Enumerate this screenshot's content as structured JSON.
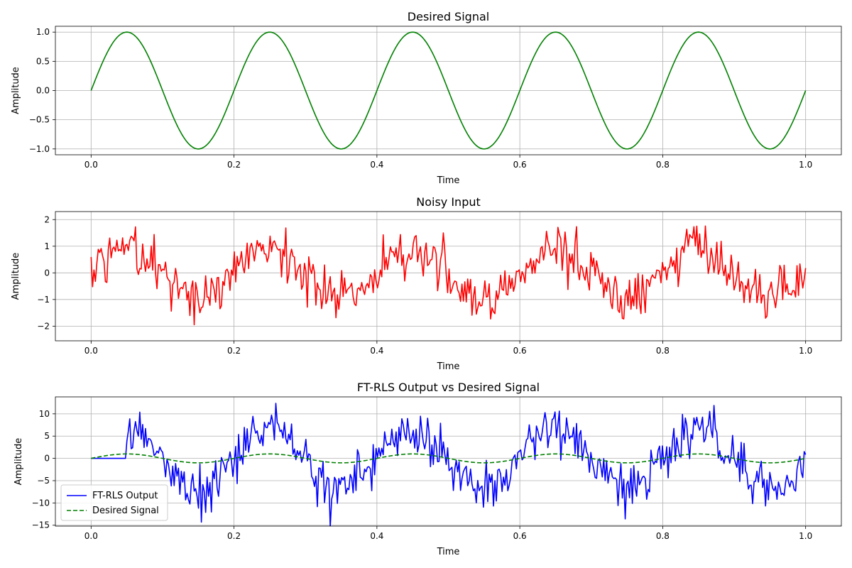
{
  "chart_data": [
    {
      "type": "line",
      "title": "Desired Signal",
      "xlabel": "Time",
      "ylabel": "Amplitude",
      "xlim": [
        -0.05,
        1.05
      ],
      "ylim": [
        -1.1,
        1.1
      ],
      "xticks": [
        0.0,
        0.2,
        0.4,
        0.6,
        0.8,
        1.0
      ],
      "xtick_labels": [
        "0.0",
        "0.2",
        "0.4",
        "0.6",
        "0.8",
        "1.0"
      ],
      "yticks": [
        1.0,
        0.5,
        0.0,
        -0.5,
        -1.0
      ],
      "ytick_labels": [
        "1.0",
        "0.5",
        "0.0",
        "−0.5",
        "−1.0"
      ],
      "grid": true,
      "legend": null,
      "series": [
        {
          "color": "#008000",
          "style": "solid",
          "function": "sin(2*pi*5*t)",
          "x_range": [
            0,
            1
          ],
          "n_points": 500
        }
      ]
    },
    {
      "type": "line",
      "title": "Noisy Input",
      "xlabel": "Time",
      "ylabel": "Amplitude",
      "xlim": [
        -0.05,
        1.05
      ],
      "ylim": [
        -2.55,
        2.3
      ],
      "xticks": [
        0.0,
        0.2,
        0.4,
        0.6,
        0.8,
        1.0
      ],
      "xtick_labels": [
        "0.0",
        "0.2",
        "0.4",
        "0.6",
        "0.8",
        "1.0"
      ],
      "yticks": [
        2,
        1,
        0,
        -1,
        -2
      ],
      "ytick_labels": [
        "2",
        "1",
        "0",
        "−1",
        "−2"
      ],
      "grid": true,
      "legend": null,
      "series": [
        {
          "color": "#ff0000",
          "style": "solid",
          "function": "sin(2*pi*5*t) + noise",
          "noise_std": 0.45,
          "x_range": [
            0,
            1
          ],
          "n_points": 500
        }
      ]
    },
    {
      "type": "line",
      "title": "FT-RLS Output vs Desired Signal",
      "xlabel": "Time",
      "ylabel": "Amplitude",
      "xlim": [
        -0.05,
        1.05
      ],
      "ylim": [
        -15.2,
        13.8
      ],
      "xticks": [
        0.0,
        0.2,
        0.4,
        0.6,
        0.8,
        1.0
      ],
      "xtick_labels": [
        "0.0",
        "0.2",
        "0.4",
        "0.6",
        "0.8",
        "1.0"
      ],
      "yticks": [
        10,
        5,
        0,
        -5,
        -10,
        -15
      ],
      "ytick_labels": [
        "10",
        "5",
        "0",
        "−5",
        "−10",
        "−15"
      ],
      "grid": true,
      "legend": "lower left",
      "series": [
        {
          "name": "FT-RLS Output",
          "color": "#0000ff",
          "style": "solid",
          "function": "approx 7*sin(2*pi*5*t) + noise, zero until t=0.05",
          "noise_std": 2.6,
          "zero_until": 0.05,
          "x_range": [
            0,
            1
          ],
          "n_points": 500
        },
        {
          "name": "Desired Signal",
          "color": "#008000",
          "style": "dashed",
          "function": "sin(2*pi*5*t)",
          "x_range": [
            0,
            1
          ],
          "n_points": 500
        }
      ]
    }
  ]
}
